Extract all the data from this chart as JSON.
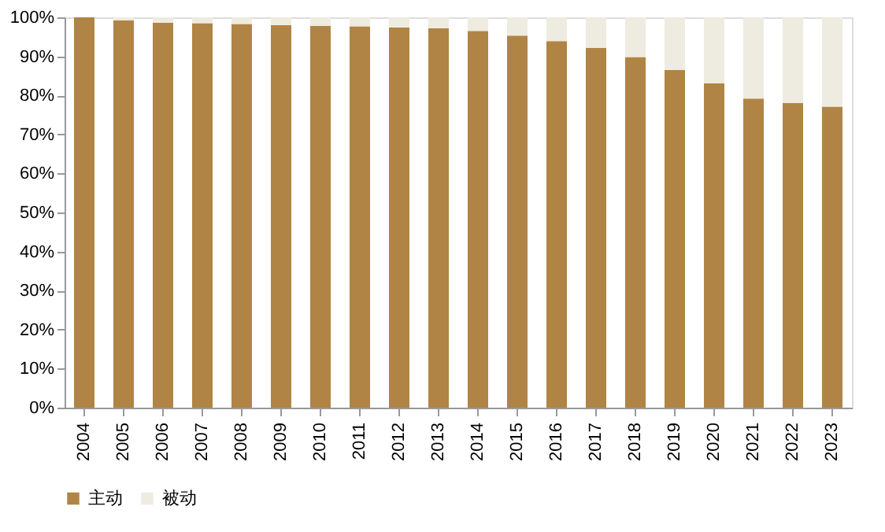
{
  "chart_data": {
    "type": "bar",
    "stacked": true,
    "categories": [
      "2004",
      "2005",
      "2006",
      "2007",
      "2008",
      "2009",
      "2010",
      "2011",
      "2012",
      "2013",
      "2014",
      "2015",
      "2016",
      "2017",
      "2018",
      "2019",
      "2020",
      "2021",
      "2022",
      "2023"
    ],
    "series": [
      {
        "name": "主动",
        "color": "#b08445",
        "values": [
          100,
          99.2,
          98.6,
          98.5,
          98.3,
          98.0,
          97.8,
          97.7,
          97.4,
          97.2,
          96.5,
          95.3,
          93.9,
          92.2,
          89.8,
          86.5,
          83.1,
          79.2,
          78.0,
          77.1
        ]
      },
      {
        "name": "被动",
        "color": "#eeebe0",
        "values": [
          0,
          0.8,
          1.4,
          1.5,
          1.7,
          2.0,
          2.2,
          2.3,
          2.6,
          2.8,
          3.5,
          4.7,
          6.1,
          7.8,
          10.2,
          13.5,
          16.9,
          20.8,
          22.0,
          22.9
        ]
      }
    ],
    "ylim": [
      0,
      100
    ],
    "yticks": [
      {
        "value": 0,
        "label": "0%"
      },
      {
        "value": 10,
        "label": "10%"
      },
      {
        "value": 20,
        "label": "20%"
      },
      {
        "value": 30,
        "label": "30%"
      },
      {
        "value": 40,
        "label": "40%"
      },
      {
        "value": 50,
        "label": "50%"
      },
      {
        "value": 60,
        "label": "60%"
      },
      {
        "value": 70,
        "label": "70%"
      },
      {
        "value": 80,
        "label": "80%"
      },
      {
        "value": 90,
        "label": "90%"
      },
      {
        "value": 100,
        "label": "100%"
      }
    ],
    "grid": false,
    "legend": "bottom"
  }
}
